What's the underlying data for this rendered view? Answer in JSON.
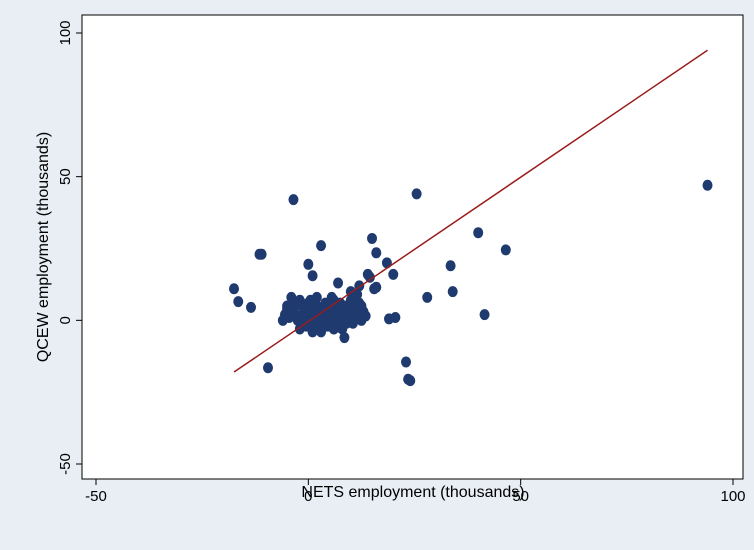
{
  "chart_data": {
    "type": "scatter",
    "xlabel": "NETS employment (thousands)",
    "ylabel": "QCEW employment (thousands)",
    "xlim": [
      -50,
      100
    ],
    "ylim": [
      -50,
      100
    ],
    "xticks": [
      -50,
      0,
      50,
      100
    ],
    "yticks": [
      -50,
      0,
      50,
      100
    ],
    "grid": false,
    "colors": {
      "points": "#1f3a6e",
      "fit_line": "#9b1c1c",
      "background": "#e8eef4",
      "plot_area": "#ffffff"
    },
    "points": [
      [
        94,
        47
      ],
      [
        25.5,
        44
      ],
      [
        -3.5,
        42
      ],
      [
        40,
        30.5
      ],
      [
        46.5,
        24.5
      ],
      [
        15,
        28.5
      ],
      [
        3,
        26
      ],
      [
        -11.5,
        23
      ],
      [
        -11,
        23
      ],
      [
        33.5,
        19
      ],
      [
        34,
        10
      ],
      [
        41.5,
        2
      ],
      [
        28,
        8
      ],
      [
        19,
        0.5
      ],
      [
        20.5,
        1
      ],
      [
        16,
        23.5
      ],
      [
        18.5,
        20
      ],
      [
        20,
        16
      ],
      [
        16,
        11.5
      ],
      [
        15.5,
        11
      ],
      [
        14,
        16
      ],
      [
        14.5,
        15
      ],
      [
        12,
        12
      ],
      [
        10,
        10
      ],
      [
        7,
        13
      ],
      [
        0,
        19.5
      ],
      [
        1,
        15.5
      ],
      [
        -17.5,
        11
      ],
      [
        -16.5,
        6.5
      ],
      [
        -13.5,
        4.5
      ],
      [
        -9.5,
        -16.5
      ],
      [
        23,
        -14.5
      ],
      [
        23.5,
        -20.5
      ],
      [
        24,
        -21
      ],
      [
        -6,
        0
      ],
      [
        -5.5,
        2
      ],
      [
        -5,
        4
      ],
      [
        -4.5,
        1
      ],
      [
        -4,
        8
      ],
      [
        -3.5,
        3
      ],
      [
        -3,
        5
      ],
      [
        -2.5,
        0
      ],
      [
        -2,
        7
      ],
      [
        -1.5,
        2
      ],
      [
        -1,
        4
      ],
      [
        -0.5,
        -2
      ],
      [
        0,
        6
      ],
      [
        0.5,
        1
      ],
      [
        1,
        3
      ],
      [
        1.5,
        -1
      ],
      [
        2,
        5
      ],
      [
        2.5,
        0
      ],
      [
        3,
        4
      ],
      [
        3.5,
        2
      ],
      [
        4,
        6
      ],
      [
        4.5,
        -2
      ],
      [
        5,
        3
      ],
      [
        5.5,
        8
      ],
      [
        6,
        1
      ],
      [
        6.5,
        4
      ],
      [
        7,
        0
      ],
      [
        7.5,
        6
      ],
      [
        8,
        -3
      ],
      [
        8.5,
        -6
      ],
      [
        9,
        5
      ],
      [
        9.5,
        2
      ],
      [
        10,
        7
      ],
      [
        10.5,
        -1
      ],
      [
        11,
        4
      ],
      [
        11.5,
        9
      ],
      [
        12,
        6
      ],
      [
        12.5,
        0
      ],
      [
        13,
        3
      ],
      [
        -2,
        -3
      ],
      [
        -1,
        -1
      ],
      [
        0,
        -2
      ],
      [
        1,
        -4
      ],
      [
        2,
        -3
      ],
      [
        3,
        -4
      ],
      [
        4,
        -1
      ],
      [
        5,
        -2
      ],
      [
        6,
        -3
      ],
      [
        7,
        -1
      ],
      [
        8,
        2
      ],
      [
        -3,
        6
      ],
      [
        -2,
        1
      ],
      [
        0,
        3
      ],
      [
        2,
        8
      ],
      [
        4,
        2
      ],
      [
        6,
        7
      ],
      [
        8,
        4
      ],
      [
        10,
        1
      ],
      [
        -4,
        2
      ],
      [
        -1.5,
        5.5
      ],
      [
        0.5,
        7
      ],
      [
        2.5,
        3
      ],
      [
        4.5,
        4.5
      ],
      [
        6.5,
        2
      ],
      [
        8.5,
        0.5
      ],
      [
        11,
        2
      ],
      [
        12.5,
        5
      ],
      [
        13.5,
        1.5
      ],
      [
        -5,
        5
      ],
      [
        1,
        0
      ],
      [
        3,
        1
      ],
      [
        5,
        0.5
      ],
      [
        7,
        3
      ],
      [
        9,
        -1
      ],
      [
        -0.5,
        3
      ],
      [
        1.5,
        6.5
      ],
      [
        3.5,
        -2
      ],
      [
        5.5,
        5.5
      ],
      [
        7.5,
        -2.5
      ]
    ],
    "fit_line": {
      "x": [
        -17.5,
        94
      ],
      "y": [
        -18,
        94
      ]
    }
  }
}
